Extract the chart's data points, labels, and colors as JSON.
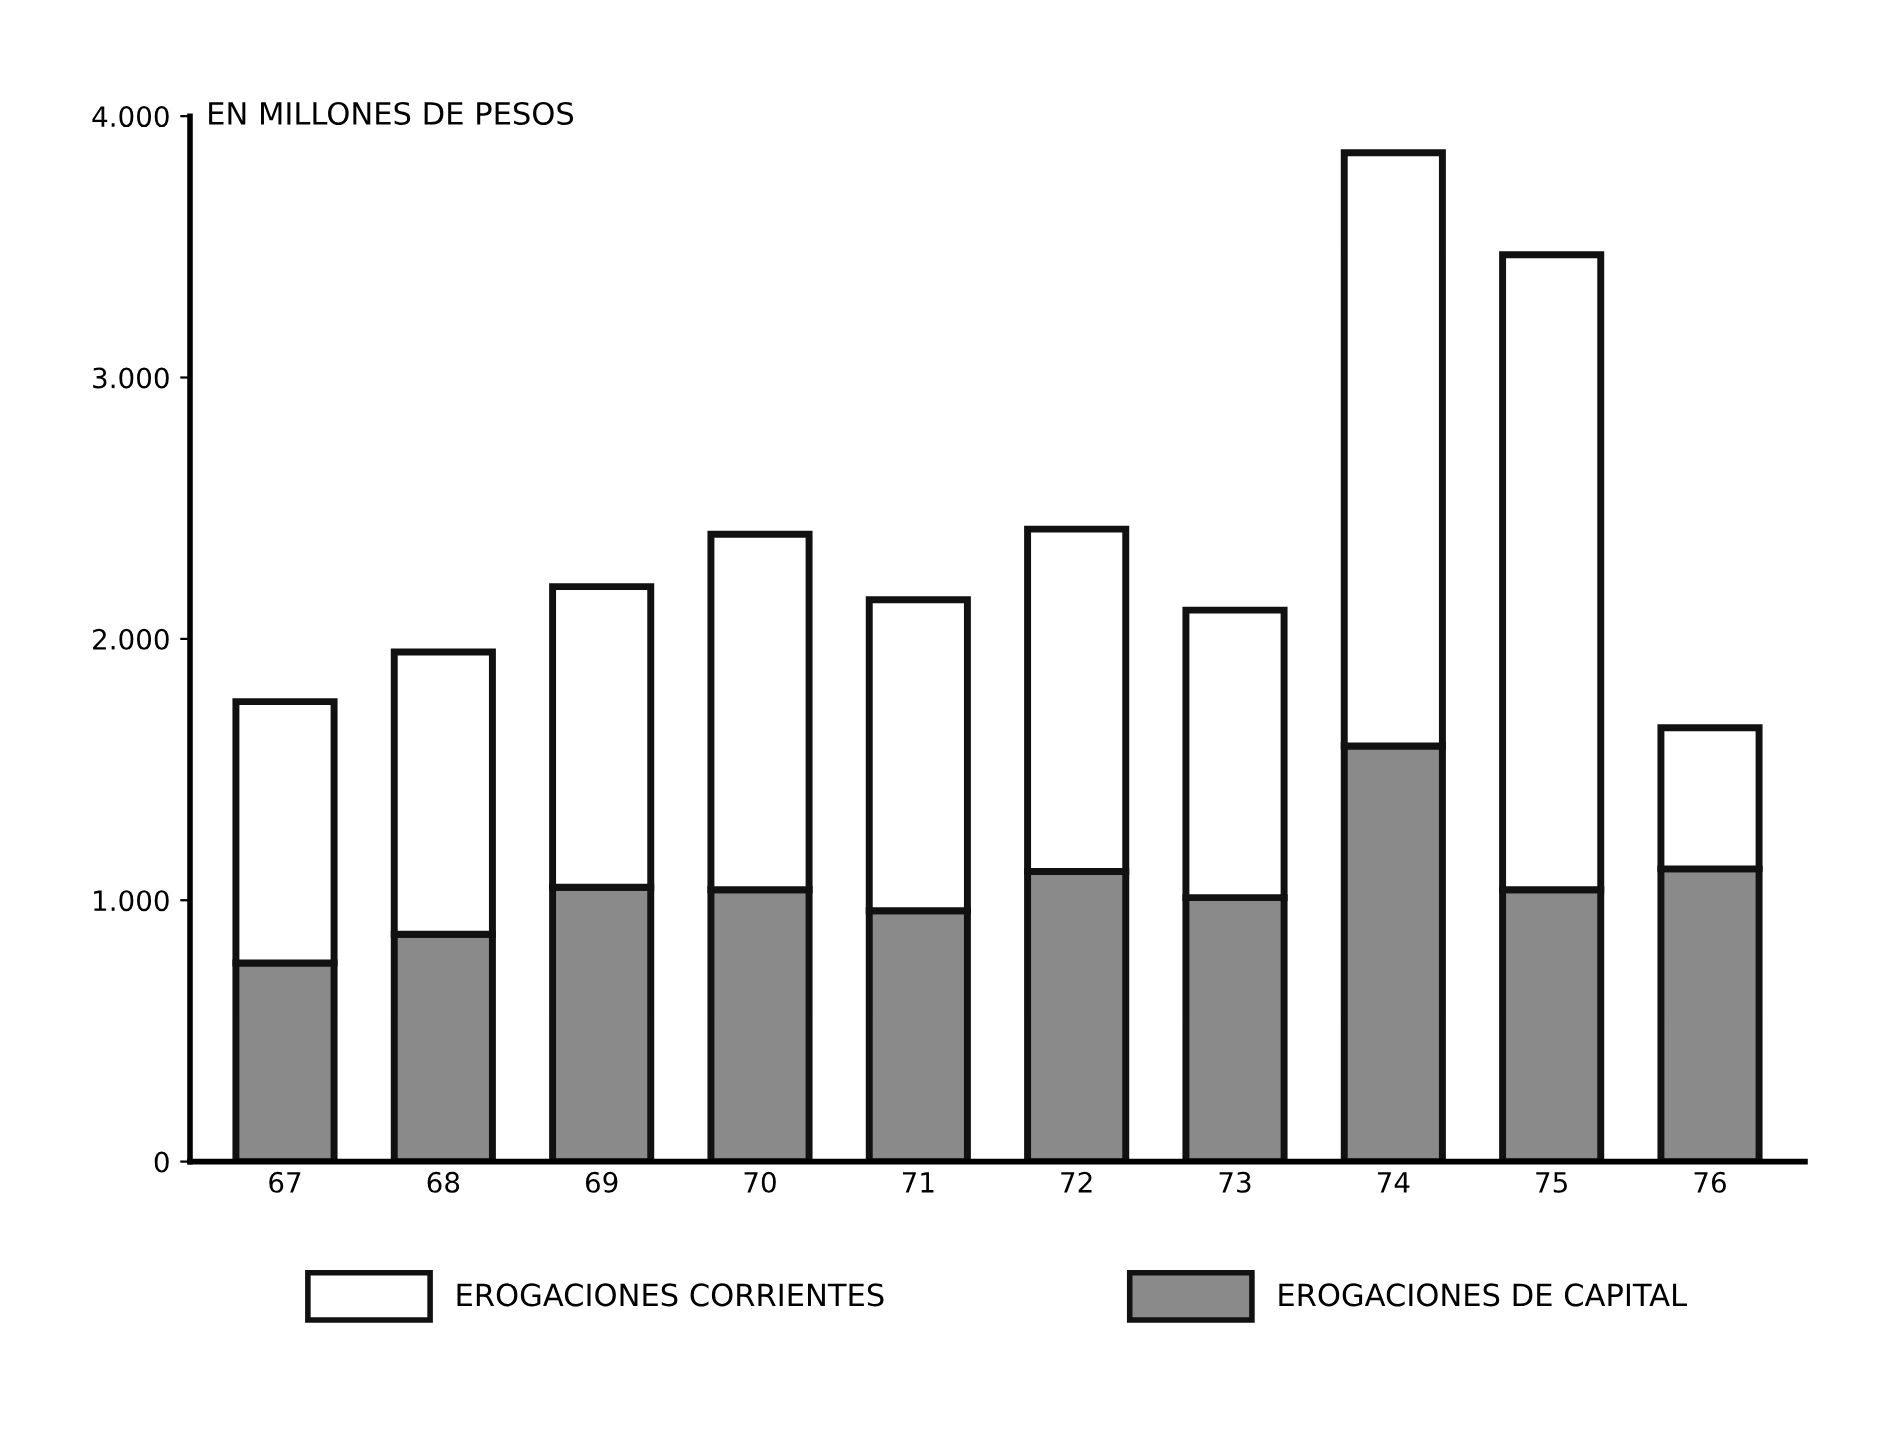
{
  "chart_data": {
    "type": "bar",
    "stacked": true,
    "ylabel": "EN MILLONES DE PESOS",
    "categories": [
      "67",
      "68",
      "69",
      "70",
      "71",
      "72",
      "73",
      "74",
      "75",
      "76"
    ],
    "series": [
      {
        "name": "EROGACIONES DE CAPITAL",
        "color": "#8a8a8a",
        "values": [
          760,
          870,
          1050,
          1040,
          960,
          1110,
          1010,
          1590,
          1040,
          1120
        ]
      },
      {
        "name": "EROGACIONES CORRIENTES",
        "color": "#ffffff",
        "values": [
          1000,
          1080,
          1150,
          1360,
          1190,
          1310,
          1100,
          2270,
          2430,
          540
        ]
      }
    ],
    "ylim": [
      0,
      4000
    ],
    "yticks": [
      0,
      {
        "value": 1000,
        "label": "1.000"
      },
      {
        "value": 2000,
        "label": "2.000"
      },
      {
        "value": 3000,
        "label": "3.000"
      },
      {
        "value": 4000,
        "label": "4.000"
      }
    ],
    "grid": false,
    "legend": "bottom"
  }
}
